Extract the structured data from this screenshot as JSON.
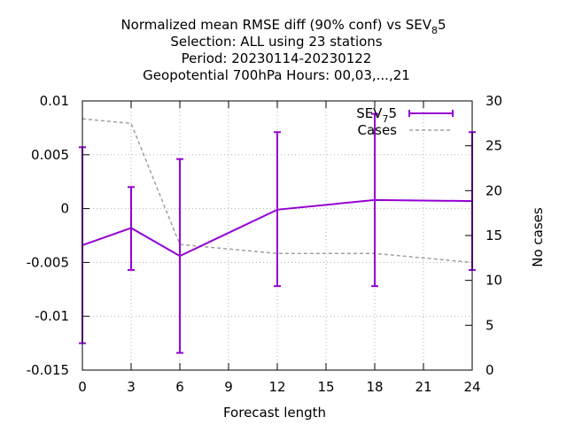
{
  "chart_data": {
    "type": "line",
    "title_lines": [
      "Normalized mean RMSE diff (90% conf) vs SEV",
      "Selection: ALL using    23 stations",
      "Period: 20230114-20230122",
      "Geopotential 700hPa   Hours:  00,03,...,21"
    ],
    "title_sub": "8",
    "title_tail": "5",
    "xlabel": "Forecast length",
    "ylabel": "",
    "y2label": "No cases",
    "xlim": [
      0,
      24
    ],
    "ylim": [
      -0.015,
      0.01
    ],
    "y2lim": [
      0,
      30
    ],
    "x_ticks": [
      "0",
      "3",
      "6",
      "9",
      "12",
      "15",
      "18",
      "21",
      "24"
    ],
    "y_ticks": [
      "0.01",
      "0.005",
      "0",
      "-0.005",
      "-0.01",
      "-0.015"
    ],
    "y2_ticks": [
      "30",
      "25",
      "20",
      "15",
      "10",
      "5",
      "0"
    ],
    "grid": true,
    "legend_position": "top-right",
    "colors": {
      "primary": "#9400d3",
      "secondary": "#a0a0a0"
    },
    "series": [
      {
        "name_main": "SEV",
        "name_sub": "7",
        "name_tail": "5",
        "axis": "y",
        "x": [
          0,
          3,
          6,
          12,
          18,
          24
        ],
        "y": [
          -0.0034,
          -0.0018,
          -0.0044,
          -0.0001,
          0.0008,
          0.0007
        ],
        "err_low": [
          -0.0125,
          -0.0057,
          -0.0134,
          -0.0072,
          -0.0072,
          -0.0057
        ],
        "err_high": [
          0.0057,
          0.002,
          0.0046,
          0.0071,
          0.0088,
          0.0071
        ]
      },
      {
        "name": "Cases",
        "axis": "y2",
        "x": [
          0,
          3,
          6,
          12,
          18,
          24
        ],
        "y": [
          28,
          27.5,
          14,
          13,
          13,
          12
        ]
      }
    ]
  }
}
